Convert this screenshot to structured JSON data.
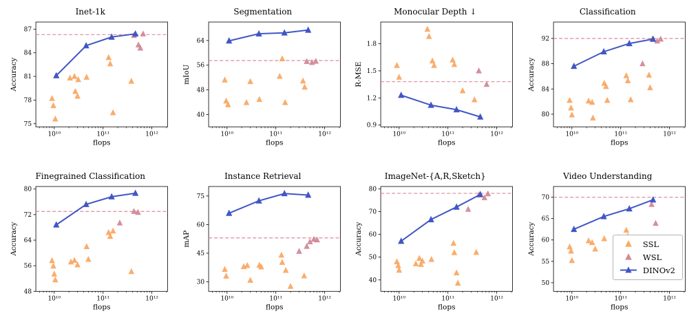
{
  "colors": {
    "ssl": "#F9A45C",
    "wsl": "#CE8493",
    "dinov2": "#4156C5",
    "baseline": "#DE8A99",
    "axis": "#000000"
  },
  "legend": {
    "items": [
      {
        "label": "SSL",
        "series": "ssl"
      },
      {
        "label": "WSL",
        "series": "wsl"
      },
      {
        "label": "DINOv2",
        "series": "dinov2"
      }
    ]
  },
  "xaxis": {
    "label": "flops",
    "scale": "log",
    "min": 4200000000.0,
    "max": 2100000000000.0,
    "ticks": [
      {
        "value": 10000000000.0,
        "label": "10¹⁰"
      },
      {
        "value": 100000000000.0,
        "label": "10¹¹"
      },
      {
        "value": 1000000000000.0,
        "label": "10¹²"
      }
    ]
  },
  "chart_data": [
    {
      "type": "scatter",
      "title": "Inet-1k",
      "ylabel": "Accuracy",
      "xlabel": "flops",
      "ylim": [
        74.6,
        87.9
      ],
      "yticks": [
        75,
        78,
        81,
        84,
        87
      ],
      "baseline": 86.3,
      "series": {
        "ssl": [
          [
            9000000000.0,
            78.2
          ],
          [
            9600000000.0,
            77.3
          ],
          [
            10500000000.0,
            75.6
          ],
          [
            21000000000.0,
            80.8
          ],
          [
            26000000000.0,
            81.0
          ],
          [
            31000000000.0,
            80.6
          ],
          [
            27000000000.0,
            79.1
          ],
          [
            30000000000.0,
            78.5
          ],
          [
            46000000000.0,
            80.9
          ],
          [
            130000000000.0,
            83.4
          ],
          [
            140000000000.0,
            82.6
          ],
          [
            160000000000.0,
            76.4
          ],
          [
            380000000000.0,
            80.4
          ]
        ],
        "wsl": [
          [
            430000000000.0,
            86.2
          ],
          [
            530000000000.0,
            85.0
          ],
          [
            580000000000.0,
            84.6
          ],
          [
            660000000000.0,
            86.4
          ]
        ],
        "dinov2": [
          [
            11000000000.0,
            81.1
          ],
          [
            45000000000.0,
            84.9
          ],
          [
            150000000000.0,
            86.0
          ],
          [
            460000000000.0,
            86.4
          ]
        ]
      }
    },
    {
      "type": "scatter",
      "title": "Segmentation",
      "ylabel": "mIoU",
      "xlabel": "flops",
      "ylim": [
        36,
        70
      ],
      "yticks": [
        40,
        48,
        56,
        64
      ],
      "baseline": 57.5,
      "series": {
        "ssl": [
          [
            9000000000.0,
            51.2
          ],
          [
            9600000000.0,
            44.4
          ],
          [
            10500000000.0,
            43.2
          ],
          [
            25000000000.0,
            43.9
          ],
          [
            30000000000.0,
            50.7
          ],
          [
            46000000000.0,
            44.9
          ],
          [
            120000000000.0,
            52.4
          ],
          [
            135000000000.0,
            58.1
          ],
          [
            155000000000.0,
            43.9
          ],
          [
            360000000000.0,
            50.9
          ],
          [
            390000000000.0,
            48.9
          ]
        ],
        "wsl": [
          [
            430000000000.0,
            57.2
          ],
          [
            550000000000.0,
            56.9
          ],
          [
            660000000000.0,
            57.3
          ]
        ],
        "dinov2": [
          [
            11000000000.0,
            63.9
          ],
          [
            45000000000.0,
            66.2
          ],
          [
            150000000000.0,
            66.5
          ],
          [
            460000000000.0,
            67.4
          ]
        ]
      }
    },
    {
      "type": "scatter",
      "title": "Monocular Depth ↓",
      "ylabel": "R-MSE",
      "xlabel": "flops",
      "ylim": [
        0.88,
        2.04
      ],
      "yticks": [
        0.9,
        1.2,
        1.5,
        1.8
      ],
      "baseline": 1.38,
      "series": {
        "ssl": [
          [
            9000000000.0,
            1.56
          ],
          [
            10000000000.0,
            1.43
          ],
          [
            38000000000.0,
            1.96
          ],
          [
            41000000000.0,
            1.88
          ],
          [
            48000000000.0,
            1.61
          ],
          [
            52000000000.0,
            1.56
          ],
          [
            125000000000.0,
            1.62
          ],
          [
            135000000000.0,
            1.57
          ],
          [
            200000000000.0,
            1.28
          ],
          [
            350000000000.0,
            1.18
          ]
        ],
        "wsl": [
          [
            430000000000.0,
            1.5
          ],
          [
            620000000000.0,
            1.35
          ]
        ],
        "dinov2": [
          [
            11000000000.0,
            1.23
          ],
          [
            45000000000.0,
            1.12
          ],
          [
            150000000000.0,
            1.07
          ],
          [
            460000000000.0,
            0.99
          ]
        ]
      }
    },
    {
      "type": "scatter",
      "title": "Classification",
      "ylabel": "Accuracy",
      "xlabel": "flops",
      "ylim": [
        78,
        94.6
      ],
      "yticks": [
        80,
        84,
        88,
        92
      ],
      "baseline": 92.0,
      "series": {
        "ssl": [
          [
            9000000000.0,
            82.2
          ],
          [
            9600000000.0,
            81.0
          ],
          [
            10000000000.0,
            79.9
          ],
          [
            22000000000.0,
            82.1
          ],
          [
            26000000000.0,
            81.9
          ],
          [
            27000000000.0,
            79.4
          ],
          [
            46000000000.0,
            84.9
          ],
          [
            50000000000.0,
            84.4
          ],
          [
            53000000000.0,
            82.2
          ],
          [
            130000000000.0,
            86.1
          ],
          [
            140000000000.0,
            85.3
          ],
          [
            160000000000.0,
            82.3
          ],
          [
            380000000000.0,
            86.2
          ],
          [
            400000000000.0,
            84.2
          ]
        ],
        "wsl": [
          [
            280000000000.0,
            88.0
          ],
          [
            450000000000.0,
            91.9
          ],
          [
            560000000000.0,
            91.6
          ],
          [
            660000000000.0,
            91.9
          ]
        ],
        "dinov2": [
          [
            11000000000.0,
            87.6
          ],
          [
            45000000000.0,
            89.9
          ],
          [
            150000000000.0,
            91.2
          ],
          [
            460000000000.0,
            91.9
          ]
        ]
      }
    },
    {
      "type": "scatter",
      "title": "Finegrained Classification",
      "ylabel": "Accuracy",
      "xlabel": "flops",
      "ylim": [
        48,
        80.8
      ],
      "yticks": [
        48,
        56,
        64,
        72,
        80
      ],
      "baseline": 73.0,
      "series": {
        "ssl": [
          [
            9000000000.0,
            57.6
          ],
          [
            9600000000.0,
            55.9
          ],
          [
            10000000000.0,
            53.4
          ],
          [
            10500000000.0,
            51.6
          ],
          [
            22000000000.0,
            57.2
          ],
          [
            26000000000.0,
            57.7
          ],
          [
            30000000000.0,
            56.3
          ],
          [
            46000000000.0,
            62.0
          ],
          [
            50000000000.0,
            58.0
          ],
          [
            130000000000.0,
            66.4
          ],
          [
            140000000000.0,
            65.2
          ],
          [
            160000000000.0,
            66.9
          ],
          [
            380000000000.0,
            54.2
          ]
        ],
        "wsl": [
          [
            220000000000.0,
            69.4
          ],
          [
            430000000000.0,
            73.0
          ],
          [
            520000000000.0,
            72.7
          ]
        ],
        "dinov2": [
          [
            11000000000.0,
            68.8
          ],
          [
            45000000000.0,
            75.2
          ],
          [
            150000000000.0,
            77.6
          ],
          [
            460000000000.0,
            78.7
          ]
        ]
      }
    },
    {
      "type": "scatter",
      "title": "Instance Retrieval",
      "ylabel": "mAP",
      "xlabel": "flops",
      "ylim": [
        25,
        80
      ],
      "yticks": [
        30,
        45,
        60,
        75
      ],
      "baseline": 53.0,
      "series": {
        "ssl": [
          [
            9000000000.0,
            36.5
          ],
          [
            9600000000.0,
            33.0
          ],
          [
            22000000000.0,
            38.0
          ],
          [
            26000000000.0,
            38.6
          ],
          [
            30000000000.0,
            30.8
          ],
          [
            46000000000.0,
            38.7
          ],
          [
            50000000000.0,
            37.8
          ],
          [
            130000000000.0,
            44.0
          ],
          [
            135000000000.0,
            40.2
          ],
          [
            160000000000.0,
            36.0
          ],
          [
            200000000000.0,
            27.6
          ],
          [
            380000000000.0,
            33.1
          ]
        ],
        "wsl": [
          [
            300000000000.0,
            46.0
          ],
          [
            430000000000.0,
            48.6
          ],
          [
            500000000000.0,
            51.0
          ],
          [
            600000000000.0,
            52.3
          ],
          [
            700000000000.0,
            52.0
          ]
        ],
        "dinov2": [
          [
            11000000000.0,
            66.0
          ],
          [
            45000000000.0,
            72.5
          ],
          [
            150000000000.0,
            76.3
          ],
          [
            460000000000.0,
            75.5
          ]
        ]
      }
    },
    {
      "type": "scatter",
      "title": "ImageNet-{A,R,Sketch}",
      "ylabel": "Accuracy",
      "xlabel": "flops",
      "ylim": [
        35,
        81
      ],
      "yticks": [
        40,
        50,
        60,
        70,
        80
      ],
      "baseline": 78.0,
      "series": {
        "ssl": [
          [
            9000000000.0,
            48.0
          ],
          [
            9600000000.0,
            46.3
          ],
          [
            10000000000.0,
            44.3
          ],
          [
            22000000000.0,
            47.1
          ],
          [
            26000000000.0,
            49.5
          ],
          [
            30000000000.0,
            48.3
          ],
          [
            28000000000.0,
            46.8
          ],
          [
            46000000000.0,
            49.0
          ],
          [
            130000000000.0,
            56.1
          ],
          [
            135000000000.0,
            52.0
          ],
          [
            150000000000.0,
            43.1
          ],
          [
            160000000000.0,
            38.6
          ],
          [
            380000000000.0,
            52.1
          ]
        ],
        "wsl": [
          [
            260000000000.0,
            71.0
          ],
          [
            430000000000.0,
            77.3
          ],
          [
            560000000000.0,
            76.1
          ],
          [
            660000000000.0,
            77.8
          ]
        ],
        "dinov2": [
          [
            11000000000.0,
            57.0
          ],
          [
            45000000000.0,
            66.5
          ],
          [
            150000000000.0,
            72.0
          ],
          [
            460000000000.0,
            77.5
          ]
        ]
      }
    },
    {
      "type": "scatter",
      "title": "Video Understanding",
      "ylabel": "Accuracy",
      "xlabel": "flops",
      "ylim": [
        48,
        72.5
      ],
      "yticks": [
        50,
        55,
        60,
        65,
        70
      ],
      "baseline": 70.0,
      "series": {
        "ssl": [
          [
            9000000000.0,
            58.4
          ],
          [
            9600000000.0,
            57.4
          ],
          [
            10000000000.0,
            55.2
          ],
          [
            22000000000.0,
            59.8
          ],
          [
            26000000000.0,
            59.4
          ],
          [
            30000000000.0,
            57.9
          ],
          [
            46000000000.0,
            60.3
          ],
          [
            130000000000.0,
            62.3
          ],
          [
            140000000000.0,
            60.9
          ],
          [
            160000000000.0,
            58.2
          ]
        ],
        "wsl": [
          [
            430000000000.0,
            68.3
          ],
          [
            520000000000.0,
            63.9
          ]
        ],
        "dinov2": [
          [
            11000000000.0,
            62.5
          ],
          [
            45000000000.0,
            65.5
          ],
          [
            150000000000.0,
            67.3
          ],
          [
            460000000000.0,
            69.4
          ]
        ]
      }
    }
  ]
}
